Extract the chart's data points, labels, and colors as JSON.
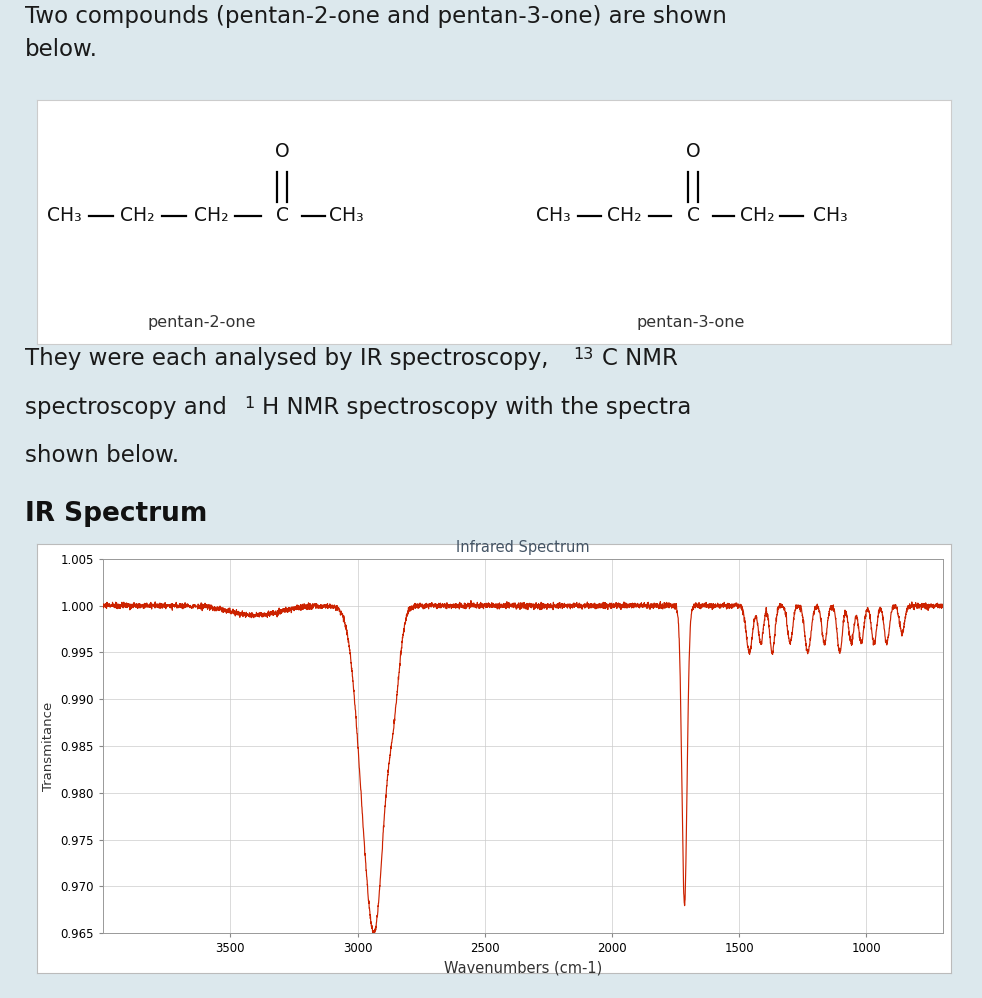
{
  "bg_color": "#dce8ed",
  "struct_box_bg": "#ffffff",
  "ir_line_color": "#cc2200",
  "ir_chart_title": "Infrared Spectrum",
  "ir_xlabel": "Wavenumbers (cm-1)",
  "ir_ylabel": "Transmitance",
  "ir_ylim": [
    0.965,
    1.005
  ],
  "ir_xlim": [
    4000,
    700
  ],
  "ir_yticks": [
    0.965,
    0.97,
    0.975,
    0.98,
    0.985,
    0.99,
    0.995,
    1.0,
    1.005
  ],
  "ir_xticks": [
    3500,
    3000,
    2500,
    2000,
    1500,
    1000
  ],
  "text_color": "#1a1a1a",
  "grid_color": "#cccccc",
  "label1": "pentan-2-one",
  "label2": "pentan-3-one"
}
